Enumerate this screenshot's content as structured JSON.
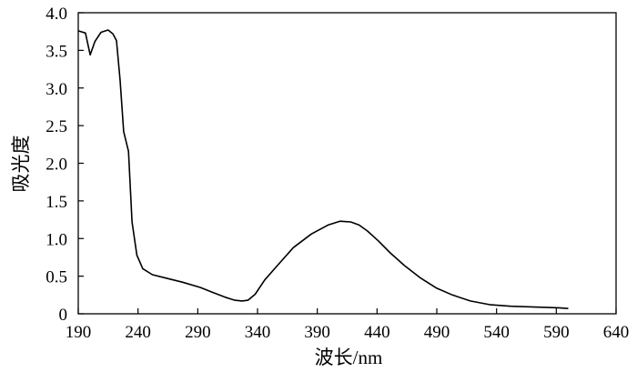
{
  "chart_data": {
    "type": "line",
    "title": "",
    "xlabel": "波长/nm",
    "ylabel": "吸光度",
    "xlim": [
      190,
      640
    ],
    "ylim": [
      0,
      4.0
    ],
    "xticks": [
      190,
      240,
      290,
      340,
      390,
      440,
      490,
      540,
      590,
      640
    ],
    "yticks": [
      0,
      0.5,
      1.0,
      1.5,
      2.0,
      2.5,
      3.0,
      3.5,
      4.0
    ],
    "ytick_labels": [
      "0",
      "0.5",
      "1.0",
      "1.5",
      "2.0",
      "2.5",
      "3.0",
      "3.5",
      "4.0"
    ],
    "grid": false,
    "legend": "none",
    "series": [
      {
        "x": [
          190,
          196,
          200,
          204,
          209,
          215,
          219,
          222,
          225,
          228,
          232,
          235,
          239,
          244,
          252,
          262,
          277,
          292,
          303,
          313,
          321,
          327,
          332,
          338,
          346,
          356,
          370,
          385,
          399,
          409,
          418,
          425,
          432,
          441,
          451,
          463,
          476,
          490,
          503,
          518,
          535,
          552,
          572,
          592,
          600
        ],
        "y": [
          3.76,
          3.73,
          3.44,
          3.62,
          3.74,
          3.77,
          3.72,
          3.63,
          3.1,
          2.42,
          2.16,
          1.22,
          0.78,
          0.6,
          0.52,
          0.48,
          0.42,
          0.35,
          0.28,
          0.22,
          0.18,
          0.17,
          0.18,
          0.26,
          0.45,
          0.63,
          0.88,
          1.06,
          1.18,
          1.23,
          1.22,
          1.18,
          1.1,
          0.97,
          0.81,
          0.64,
          0.48,
          0.34,
          0.25,
          0.17,
          0.12,
          0.1,
          0.09,
          0.08,
          0.07
        ]
      }
    ]
  }
}
